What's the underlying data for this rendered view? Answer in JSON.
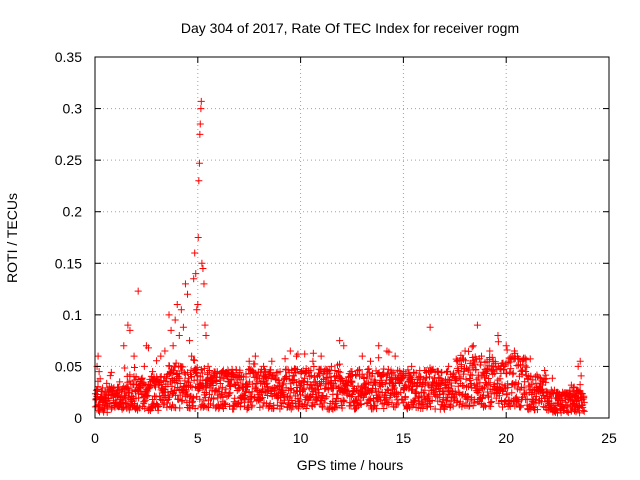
{
  "chart_data": {
    "type": "scatter",
    "title": "Day 304 of 2017, Rate Of TEC Index for receiver rogm",
    "xlabel": "GPS time / hours",
    "ylabel": "ROTI / TECUs",
    "xlim": [
      0,
      25
    ],
    "ylim": [
      0,
      0.35
    ],
    "x_ticks": [
      0,
      5,
      10,
      15,
      20,
      25
    ],
    "x_tick_labels": [
      "0",
      "5",
      "10",
      "15",
      "20",
      "25"
    ],
    "y_ticks": [
      0,
      0.05,
      0.1,
      0.15,
      0.2,
      0.25,
      0.3,
      0.35
    ],
    "y_tick_labels": [
      "0",
      "0.05",
      "0.1",
      "0.15",
      "0.2",
      "0.25",
      "0.3",
      "0.35"
    ],
    "grid": true,
    "marker": "plus",
    "marker_color": "#ff0000",
    "series": [
      {
        "points": [
          [
            0.05,
            0.018
          ],
          [
            0.1,
            0.05
          ],
          [
            0.15,
            0.06
          ],
          [
            0.2,
            0.045
          ],
          [
            0.25,
            0.038
          ],
          [
            0.3,
            0.02
          ],
          [
            0.5,
            0.025
          ],
          [
            0.8,
            0.03
          ],
          [
            1.0,
            0.022
          ],
          [
            1.2,
            0.035
          ],
          [
            1.4,
            0.07
          ],
          [
            1.6,
            0.09
          ],
          [
            1.7,
            0.085
          ],
          [
            1.9,
            0.06
          ],
          [
            2.0,
            0.04
          ],
          [
            2.1,
            0.123
          ],
          [
            2.2,
            0.03
          ],
          [
            2.4,
            0.05
          ],
          [
            2.5,
            0.07
          ],
          [
            2.6,
            0.068
          ],
          [
            2.8,
            0.045
          ],
          [
            3.0,
            0.04
          ],
          [
            3.2,
            0.06
          ],
          [
            3.4,
            0.065
          ],
          [
            3.6,
            0.1
          ],
          [
            3.7,
            0.085
          ],
          [
            3.8,
            0.07
          ],
          [
            3.9,
            0.095
          ],
          [
            4.0,
            0.11
          ],
          [
            4.1,
            0.08
          ],
          [
            4.2,
            0.105
          ],
          [
            4.3,
            0.088
          ],
          [
            4.4,
            0.13
          ],
          [
            4.5,
            0.12
          ],
          [
            4.6,
            0.075
          ],
          [
            4.7,
            0.06
          ],
          [
            4.8,
            0.135
          ],
          [
            4.85,
            0.16
          ],
          [
            4.9,
            0.14
          ],
          [
            4.95,
            0.105
          ],
          [
            5.0,
            0.11
          ],
          [
            5.02,
            0.175
          ],
          [
            5.05,
            0.23
          ],
          [
            5.08,
            0.247
          ],
          [
            5.1,
            0.275
          ],
          [
            5.12,
            0.285
          ],
          [
            5.15,
            0.3
          ],
          [
            5.17,
            0.307
          ],
          [
            5.2,
            0.15
          ],
          [
            5.25,
            0.145
          ],
          [
            5.3,
            0.13
          ],
          [
            5.35,
            0.09
          ],
          [
            5.4,
            0.08
          ],
          [
            5.5,
            0.05
          ],
          [
            5.8,
            0.04
          ],
          [
            6.2,
            0.045
          ],
          [
            6.5,
            0.035
          ],
          [
            7.0,
            0.04
          ],
          [
            7.5,
            0.055
          ],
          [
            7.8,
            0.06
          ],
          [
            8.2,
            0.05
          ],
          [
            8.6,
            0.055
          ],
          [
            9.0,
            0.045
          ],
          [
            9.5,
            0.065
          ],
          [
            9.8,
            0.06
          ],
          [
            10.2,
            0.062
          ],
          [
            10.6,
            0.055
          ],
          [
            11.0,
            0.06
          ],
          [
            11.5,
            0.05
          ],
          [
            11.9,
            0.075
          ],
          [
            12.1,
            0.07
          ],
          [
            12.5,
            0.045
          ],
          [
            13.0,
            0.06
          ],
          [
            13.4,
            0.055
          ],
          [
            13.8,
            0.07
          ],
          [
            14.2,
            0.065
          ],
          [
            14.6,
            0.06
          ],
          [
            15.0,
            0.045
          ],
          [
            15.4,
            0.05
          ],
          [
            15.8,
            0.04
          ],
          [
            16.3,
            0.088
          ],
          [
            16.7,
            0.045
          ],
          [
            17.2,
            0.05
          ],
          [
            17.6,
            0.055
          ],
          [
            18.0,
            0.065
          ],
          [
            18.4,
            0.07
          ],
          [
            18.6,
            0.09
          ],
          [
            18.8,
            0.06
          ],
          [
            19.2,
            0.065
          ],
          [
            19.6,
            0.08
          ],
          [
            20.0,
            0.07
          ],
          [
            20.4,
            0.065
          ],
          [
            20.8,
            0.055
          ],
          [
            21.2,
            0.04
          ],
          [
            21.6,
            0.03
          ],
          [
            22.0,
            0.025
          ],
          [
            22.5,
            0.025
          ],
          [
            23.0,
            0.02
          ],
          [
            23.3,
            0.03
          ],
          [
            23.5,
            0.05
          ],
          [
            23.6,
            0.055
          ]
        ]
      }
    ]
  }
}
